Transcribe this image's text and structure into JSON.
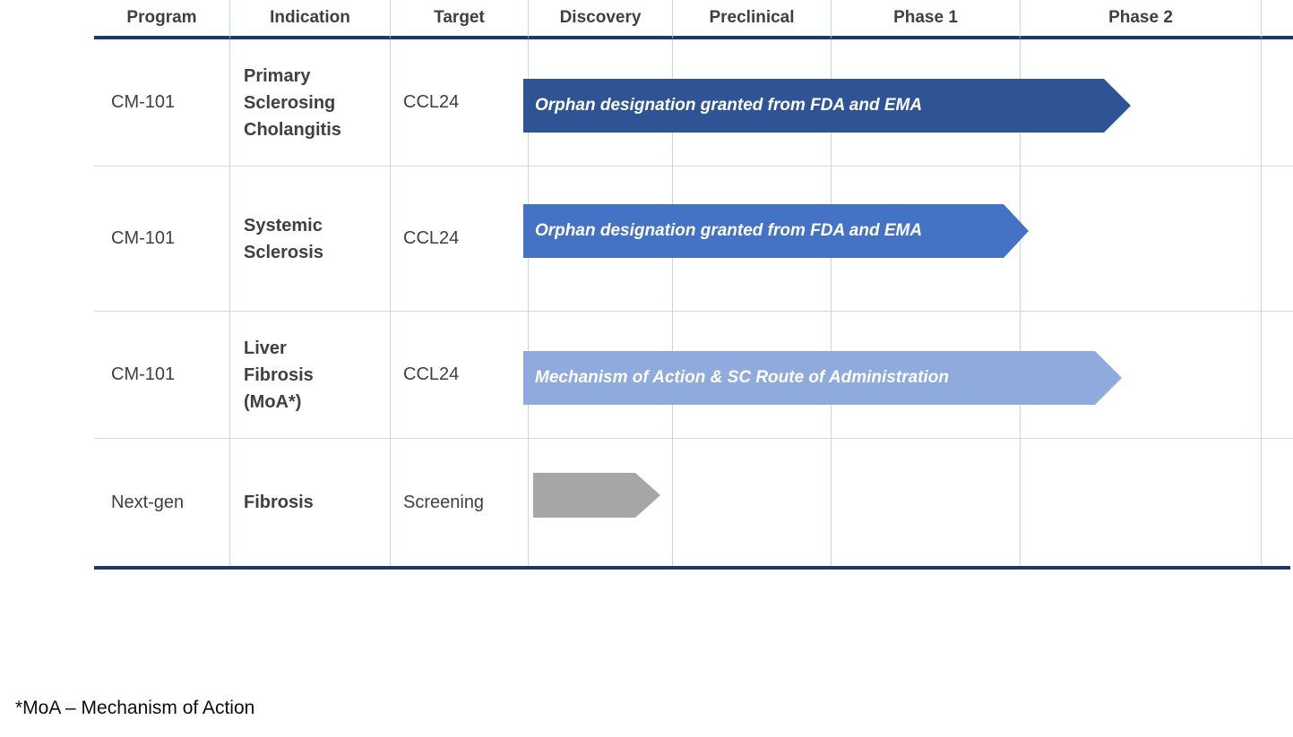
{
  "chart_data": {
    "type": "table",
    "title": "",
    "columns": [
      "Program",
      "Indication",
      "Target",
      "Discovery",
      "Preclinical",
      "Phase 1",
      "Phase 2"
    ],
    "rows": [
      {
        "program": "CM-101",
        "indication": "Primary Sclerosing Cholangitis",
        "target": "CCL24",
        "bar": {
          "label": "Orphan designation granted from FDA and EMA",
          "color": "#2F5496",
          "from": "Discovery",
          "to": "Phase 2 (mid)"
        }
      },
      {
        "program": "CM-101",
        "indication": "Systemic Sclerosis",
        "target": "CCL24",
        "bar": {
          "label": "Orphan designation granted from FDA and EMA",
          "color": "#4472C4",
          "from": "Discovery",
          "to": "Phase 2 (start)"
        }
      },
      {
        "program": "CM-101",
        "indication": "Liver Fibrosis (MoA*)",
        "target": "CCL24",
        "bar": {
          "label": "Mechanism of Action & SC Route of Administration",
          "color": "#8FAADC",
          "from": "Discovery",
          "to": "Phase 2 (mid)"
        }
      },
      {
        "program": "Next-gen",
        "indication": "Fibrosis",
        "target": "Screening",
        "bar": {
          "label": "",
          "color": "#A6A6A6",
          "from": "Discovery",
          "to": "Discovery (partial)"
        }
      }
    ],
    "footnote": "*MoA – Mechanism of Action"
  },
  "table": {
    "headers": [
      "Program",
      "Indication",
      "Target",
      "Discovery",
      "Preclinical",
      "Phase 1",
      "Phase 2",
      ""
    ],
    "rows": [
      {
        "program": "CM-101",
        "indication_lines": [
          "Primary",
          "Sclerosing",
          "Cholangitis"
        ],
        "target": "CCL24",
        "arrow": {
          "label": "Orphan designation granted from FDA and EMA",
          "color": "#2F5496"
        }
      },
      {
        "program": "CM-101",
        "indication_lines": [
          "Systemic",
          "Sclerosis"
        ],
        "target": "CCL24",
        "arrow": {
          "label": "Orphan designation granted from FDA and EMA",
          "color": "#4472C4"
        }
      },
      {
        "program": "CM-101",
        "indication_lines": [
          "Liver",
          "Fibrosis",
          "(MoA*)"
        ],
        "target": "CCL24",
        "arrow": {
          "label": "Mechanism of Action & SC Route of Administration",
          "color": "#8FAADC"
        }
      },
      {
        "program": "Next-gen",
        "indication_lines": [
          "Fibrosis"
        ],
        "target": "Screening",
        "arrow": {
          "label": "",
          "color": "#A6A6A6"
        }
      }
    ]
  },
  "footnote": "*MoA – Mechanism of Action",
  "colors": {
    "header_rule": "#1F3864",
    "bottom_rule": "#1F3864",
    "grid_vertical": "#CBD4E3",
    "grid_horizontal": "#D9D9D9",
    "arrow_dark_blue": "#2F5496",
    "arrow_blue": "#4472C4",
    "arrow_light_blue": "#8FAADC",
    "arrow_gray": "#A6A6A6",
    "body_text": "#404040",
    "arrow_text": "#FFFFFF"
  }
}
